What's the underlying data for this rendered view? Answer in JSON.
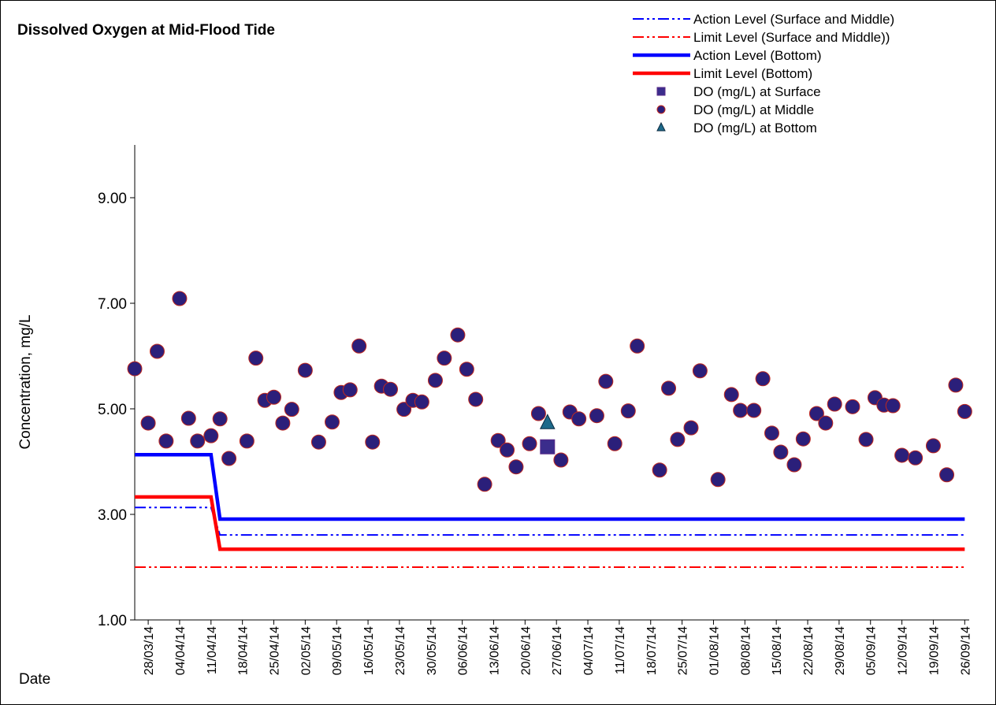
{
  "chart_data": {
    "type": "scatter",
    "title": "Dissolved Oxygen at Mid-Flood Tide",
    "y_label": "Concentration, mg/L",
    "x_label": "Date",
    "xlim": [
      "25/03/14",
      "27/09/14"
    ],
    "xticks": [
      "28/03/14",
      "04/04/14",
      "11/04/14",
      "18/04/14",
      "25/04/14",
      "02/05/14",
      "09/05/14",
      "16/05/14",
      "23/05/14",
      "30/05/14",
      "06/06/14",
      "13/06/14",
      "20/06/14",
      "27/06/14",
      "04/07/14",
      "11/07/14",
      "18/07/14",
      "25/07/14",
      "01/08/14",
      "08/08/14",
      "15/08/14",
      "22/08/14",
      "29/08/14",
      "05/09/14",
      "12/09/14",
      "19/09/14",
      "26/09/14"
    ],
    "ylim": [
      1,
      10
    ],
    "yticks": [
      {
        "value": 1,
        "label": "1.00"
      },
      {
        "value": 3,
        "label": "3.00"
      },
      {
        "value": 5,
        "label": "5.00"
      },
      {
        "value": 7,
        "label": "7.00"
      },
      {
        "value": 9,
        "label": "9.00"
      }
    ],
    "series": [
      {
        "name": "Action Level (Surface and Middle)",
        "kind": "line",
        "dash": "dash-dot-dot",
        "color": "#0000ff",
        "x": [
          "25/03/14",
          "11/04/14",
          "13/04/14",
          "26/09/14"
        ],
        "values": [
          3.13,
          3.13,
          2.61,
          2.61
        ]
      },
      {
        "name": "Limit Level (Surface and Middle))",
        "kind": "line",
        "dash": "dash-dot-dot",
        "color": "#ff0000",
        "x": [
          "25/03/14",
          "26/09/14"
        ],
        "values": [
          2.0,
          2.0
        ]
      },
      {
        "name": "Action Level (Bottom)",
        "kind": "line",
        "dash": "solid",
        "color": "#0000ff",
        "x": [
          "25/03/14",
          "11/04/14",
          "13/04/14",
          "26/09/14"
        ],
        "values": [
          4.13,
          4.13,
          2.91,
          2.91
        ]
      },
      {
        "name": "Limit Level (Bottom)",
        "kind": "line",
        "dash": "solid",
        "color": "#ff0000",
        "x": [
          "25/03/14",
          "11/04/14",
          "13/04/14",
          "26/09/14"
        ],
        "values": [
          3.33,
          3.33,
          2.34,
          2.34
        ]
      },
      {
        "name": "DO (mg/L) at Surface",
        "kind": "marker",
        "marker": "square",
        "color": "#3b2d8c",
        "x": [
          "25/06/14"
        ],
        "values": [
          4.28
        ]
      },
      {
        "name": "DO (mg/L) at Middle",
        "kind": "marker",
        "marker": "circle",
        "color": "#2b1f7a",
        "x": [
          "25/03/14",
          "28/03/14",
          "30/03/14",
          "01/04/14",
          "04/04/14",
          "06/04/14",
          "08/04/14",
          "11/04/14",
          "13/04/14",
          "15/04/14",
          "19/04/14",
          "21/04/14",
          "23/04/14",
          "25/04/14",
          "27/04/14",
          "29/04/14",
          "02/05/14",
          "05/05/14",
          "08/05/14",
          "10/05/14",
          "12/05/14",
          "14/05/14",
          "17/05/14",
          "19/05/14",
          "21/05/14",
          "24/05/14",
          "26/05/14",
          "28/05/14",
          "31/05/14",
          "02/06/14",
          "05/06/14",
          "07/06/14",
          "09/06/14",
          "11/06/14",
          "14/06/14",
          "16/06/14",
          "18/06/14",
          "21/06/14",
          "23/06/14",
          "28/06/14",
          "30/06/14",
          "02/07/14",
          "06/07/14",
          "08/07/14",
          "10/07/14",
          "13/07/14",
          "15/07/14",
          "20/07/14",
          "22/07/14",
          "24/07/14",
          "27/07/14",
          "29/07/14",
          "02/08/14",
          "05/08/14",
          "07/08/14",
          "10/08/14",
          "12/08/14",
          "14/08/14",
          "16/08/14",
          "19/08/14",
          "21/08/14",
          "24/08/14",
          "26/08/14",
          "28/08/14",
          "01/09/14",
          "04/09/14",
          "06/09/14",
          "08/09/14",
          "10/09/14",
          "12/09/14",
          "15/09/14",
          "19/09/14",
          "22/09/14",
          "24/09/14",
          "26/09/14"
        ],
        "values": [
          5.76,
          4.73,
          6.09,
          4.39,
          7.09,
          4.82,
          4.39,
          4.49,
          4.81,
          4.06,
          4.39,
          5.96,
          5.16,
          5.22,
          4.73,
          4.99,
          5.73,
          4.37,
          4.75,
          5.31,
          5.36,
          6.19,
          4.37,
          5.43,
          5.37,
          4.99,
          5.16,
          5.13,
          5.54,
          5.96,
          6.4,
          5.75,
          5.18,
          3.57,
          4.4,
          4.22,
          3.9,
          4.34,
          4.91,
          4.03,
          4.94,
          4.81,
          4.87,
          5.52,
          4.34,
          4.96,
          6.19,
          3.84,
          5.39,
          4.42,
          4.64,
          5.72,
          3.66,
          5.27,
          4.97,
          4.97,
          5.57,
          4.54,
          4.18,
          3.94,
          4.43,
          4.91,
          4.73,
          5.09,
          5.04,
          4.42,
          5.21,
          5.07,
          5.06,
          4.12,
          4.07,
          4.3,
          3.75,
          5.45,
          4.95
        ]
      },
      {
        "name": "DO (mg/L) at Bottom",
        "kind": "marker",
        "marker": "triangle",
        "color": "#1e6a8a",
        "x": [
          "25/06/14"
        ],
        "values": [
          4.73
        ]
      }
    ]
  }
}
